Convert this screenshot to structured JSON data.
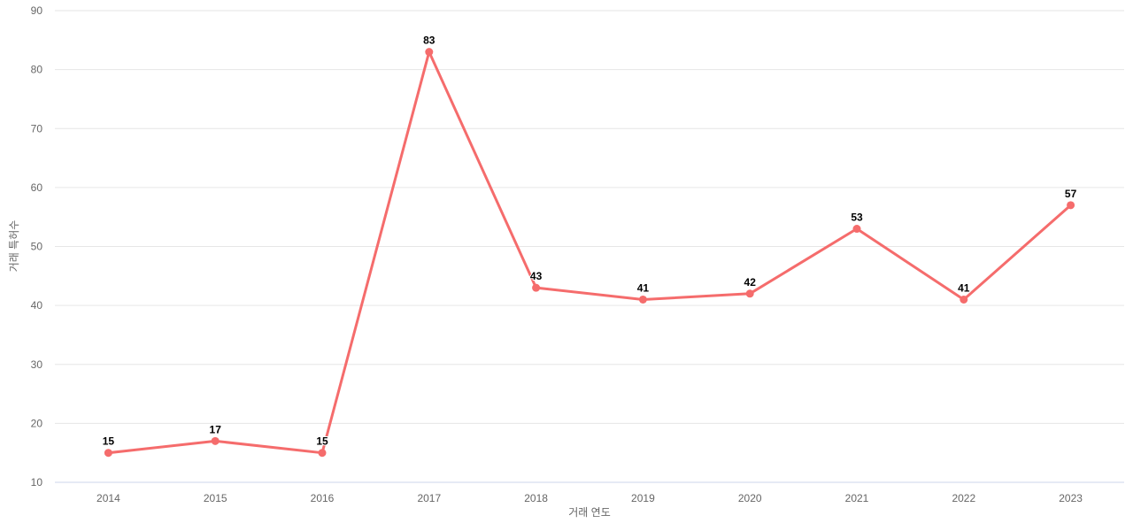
{
  "chart_data": {
    "type": "line",
    "title": "",
    "categories": [
      "2014",
      "2015",
      "2016",
      "2017",
      "2018",
      "2019",
      "2020",
      "2021",
      "2022",
      "2023"
    ],
    "values": [
      15,
      17,
      15,
      83,
      43,
      41,
      42,
      53,
      41,
      57
    ],
    "xlabel": "거래 연도",
    "ylabel": "거래 특허수",
    "ylim": [
      10,
      90
    ],
    "y_ticks": [
      10,
      20,
      30,
      40,
      50,
      60,
      70,
      80,
      90
    ],
    "grid": "horizontal",
    "legend": "none",
    "colors": {
      "line": "#f56c6c",
      "marker": "#f56c6c",
      "gridline": "#e6e6e6",
      "axis_line": "#ccd6eb",
      "tick_label": "#666666",
      "axis_title": "#666666",
      "data_label": "#000000",
      "background": "#ffffff"
    }
  }
}
